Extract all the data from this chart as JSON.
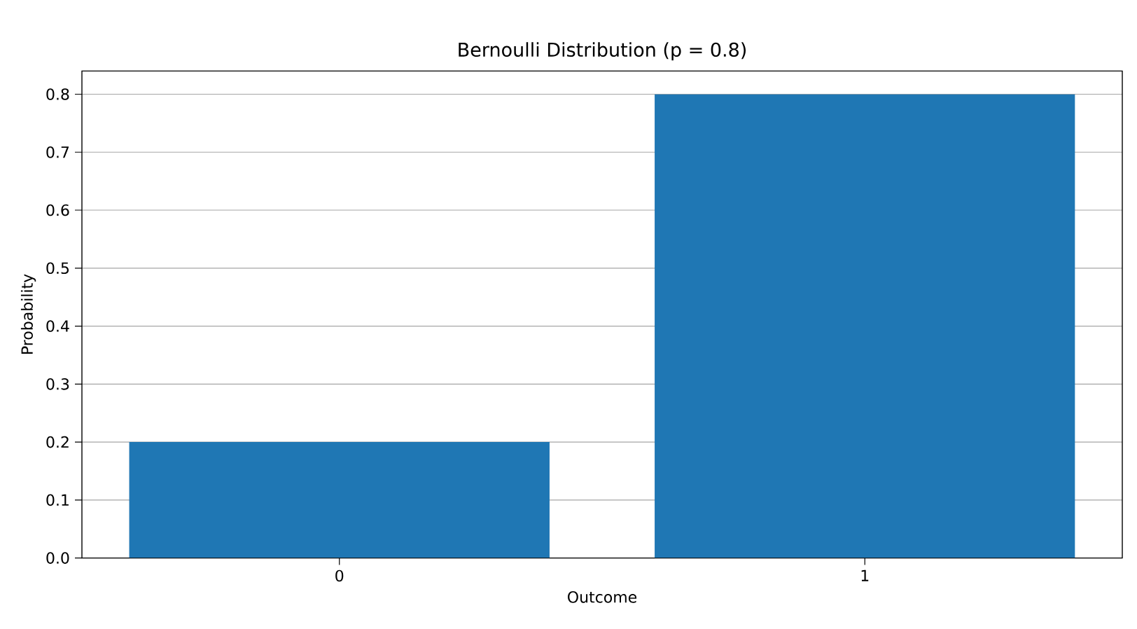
{
  "chart_data": {
    "type": "bar",
    "title": "Bernoulli Distribution (p = 0.8)",
    "xlabel": "Outcome",
    "ylabel": "Probability",
    "categories": [
      "0",
      "1"
    ],
    "values": [
      0.2,
      0.8
    ],
    "color": "#1f77b4",
    "ylim": [
      0,
      0.84
    ],
    "yticks": [
      {
        "value": 0,
        "label": "0.0"
      },
      0.1,
      0.2,
      0.3,
      0.4,
      0.5,
      0.6,
      0.7,
      0.8
    ],
    "grid": "y"
  }
}
